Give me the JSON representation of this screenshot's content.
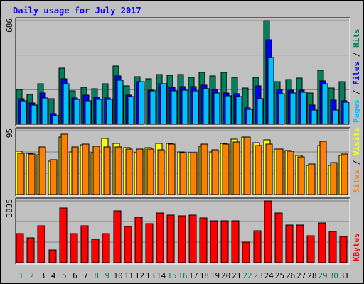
{
  "chart_data": {
    "type": "bar",
    "title": "Daily usage for July 2017",
    "categories": [
      "1",
      "2",
      "3",
      "4",
      "5",
      "6",
      "7",
      "8",
      "9",
      "10",
      "11",
      "12",
      "13",
      "14",
      "15",
      "16",
      "17",
      "18",
      "19",
      "20",
      "21",
      "22",
      "23",
      "24",
      "25",
      "26",
      "27",
      "28",
      "29",
      "30",
      "31"
    ],
    "weekend_days": [
      "1",
      "2",
      "8",
      "9",
      "15",
      "16",
      "22",
      "23",
      "29",
      "30"
    ],
    "panels": [
      {
        "id": "hits-files-pages",
        "ymax": 686,
        "ymax_label": "686",
        "axis_labels": [
          {
            "text": "Pages",
            "color": "#00c0ff"
          },
          {
            "text": "Files",
            "color": "#0000ff"
          },
          {
            "text": "Hits",
            "color": "#00805c"
          }
        ],
        "series": [
          {
            "name": "Hits",
            "color": "#00805c",
            "values": [
              230,
              198,
              266,
              168,
              372,
              221,
              245,
              237,
              269,
              387,
              252,
              314,
              301,
              328,
              322,
              329,
              312,
              341,
              321,
              345,
              310,
              241,
              311,
              686,
              280,
              296,
              307,
              209,
              357,
              240,
              280
            ]
          },
          {
            "name": "Files",
            "color": "#0000ff",
            "values": [
              168,
              139,
              205,
              70,
              302,
              176,
              192,
              180,
              176,
              320,
              193,
              283,
              225,
              268,
              244,
              251,
              249,
              259,
              231,
              206,
              201,
              108,
              252,
              560,
              231,
              225,
              227,
              126,
              288,
              160,
              154
            ]
          },
          {
            "name": "Pages",
            "color": "#00c0ff",
            "values": [
              155,
              127,
              172,
              55,
              268,
              165,
              155,
              165,
              165,
              290,
              185,
              283,
              223,
              270,
              220,
              225,
              220,
              235,
              205,
              190,
              185,
              98,
              170,
              442,
              200,
              205,
              210,
              96,
              270,
              96,
              147
            ]
          }
        ]
      },
      {
        "id": "visits-sites",
        "ymax": 95,
        "ymax_label": "95",
        "axis_labels": [
          {
            "text": "Sites",
            "color": "#ff8000"
          },
          {
            "text": "Visits",
            "color": "#ffff00"
          }
        ],
        "series": [
          {
            "name": "Visits",
            "color": "#ffff00",
            "values": [
              64,
              61,
              59,
              50,
              85,
              63,
              74,
              62,
              83,
              76,
              70,
              62,
              70,
              76,
              76,
              63,
              62,
              72,
              63,
              76,
              82,
              85,
              77,
              81,
              68,
              65,
              58,
              43,
              73,
              43,
              58
            ]
          },
          {
            "name": "Sites",
            "color": "#ff8000",
            "values": [
              61,
              60,
              71,
              52,
              90,
              71,
              75,
              72,
              71,
              71,
              68,
              68,
              68,
              67,
              75,
              62,
              62,
              75,
              66,
              75,
              78,
              86,
              73,
              75,
              68,
              64,
              56,
              45,
              79,
              47,
              60
            ]
          }
        ]
      },
      {
        "id": "kbytes",
        "ymax": 3835,
        "ymax_label": "3835",
        "axis_labels": [
          {
            "text": "KBytes",
            "color": "#ff0000"
          }
        ],
        "series": [
          {
            "name": "KBytes",
            "color": "#ff0000",
            "values": [
              1810,
              1550,
              2310,
              810,
              3400,
              1810,
              2310,
              1460,
              1810,
              3200,
              2270,
              2830,
              2430,
              3100,
              2960,
              2890,
              2940,
              2780,
              2620,
              2610,
              2610,
              1260,
              1970,
              3835,
              3070,
              2350,
              2340,
              1690,
              2480,
              1940,
              1620
            ]
          }
        ]
      }
    ]
  },
  "colors": {
    "background": "#c0c0c0",
    "frame": "#ffffff",
    "plot": "#c0c0c0",
    "title": "#0000ff",
    "weekday_label": "#000000",
    "weekend_label": "#00805c"
  }
}
